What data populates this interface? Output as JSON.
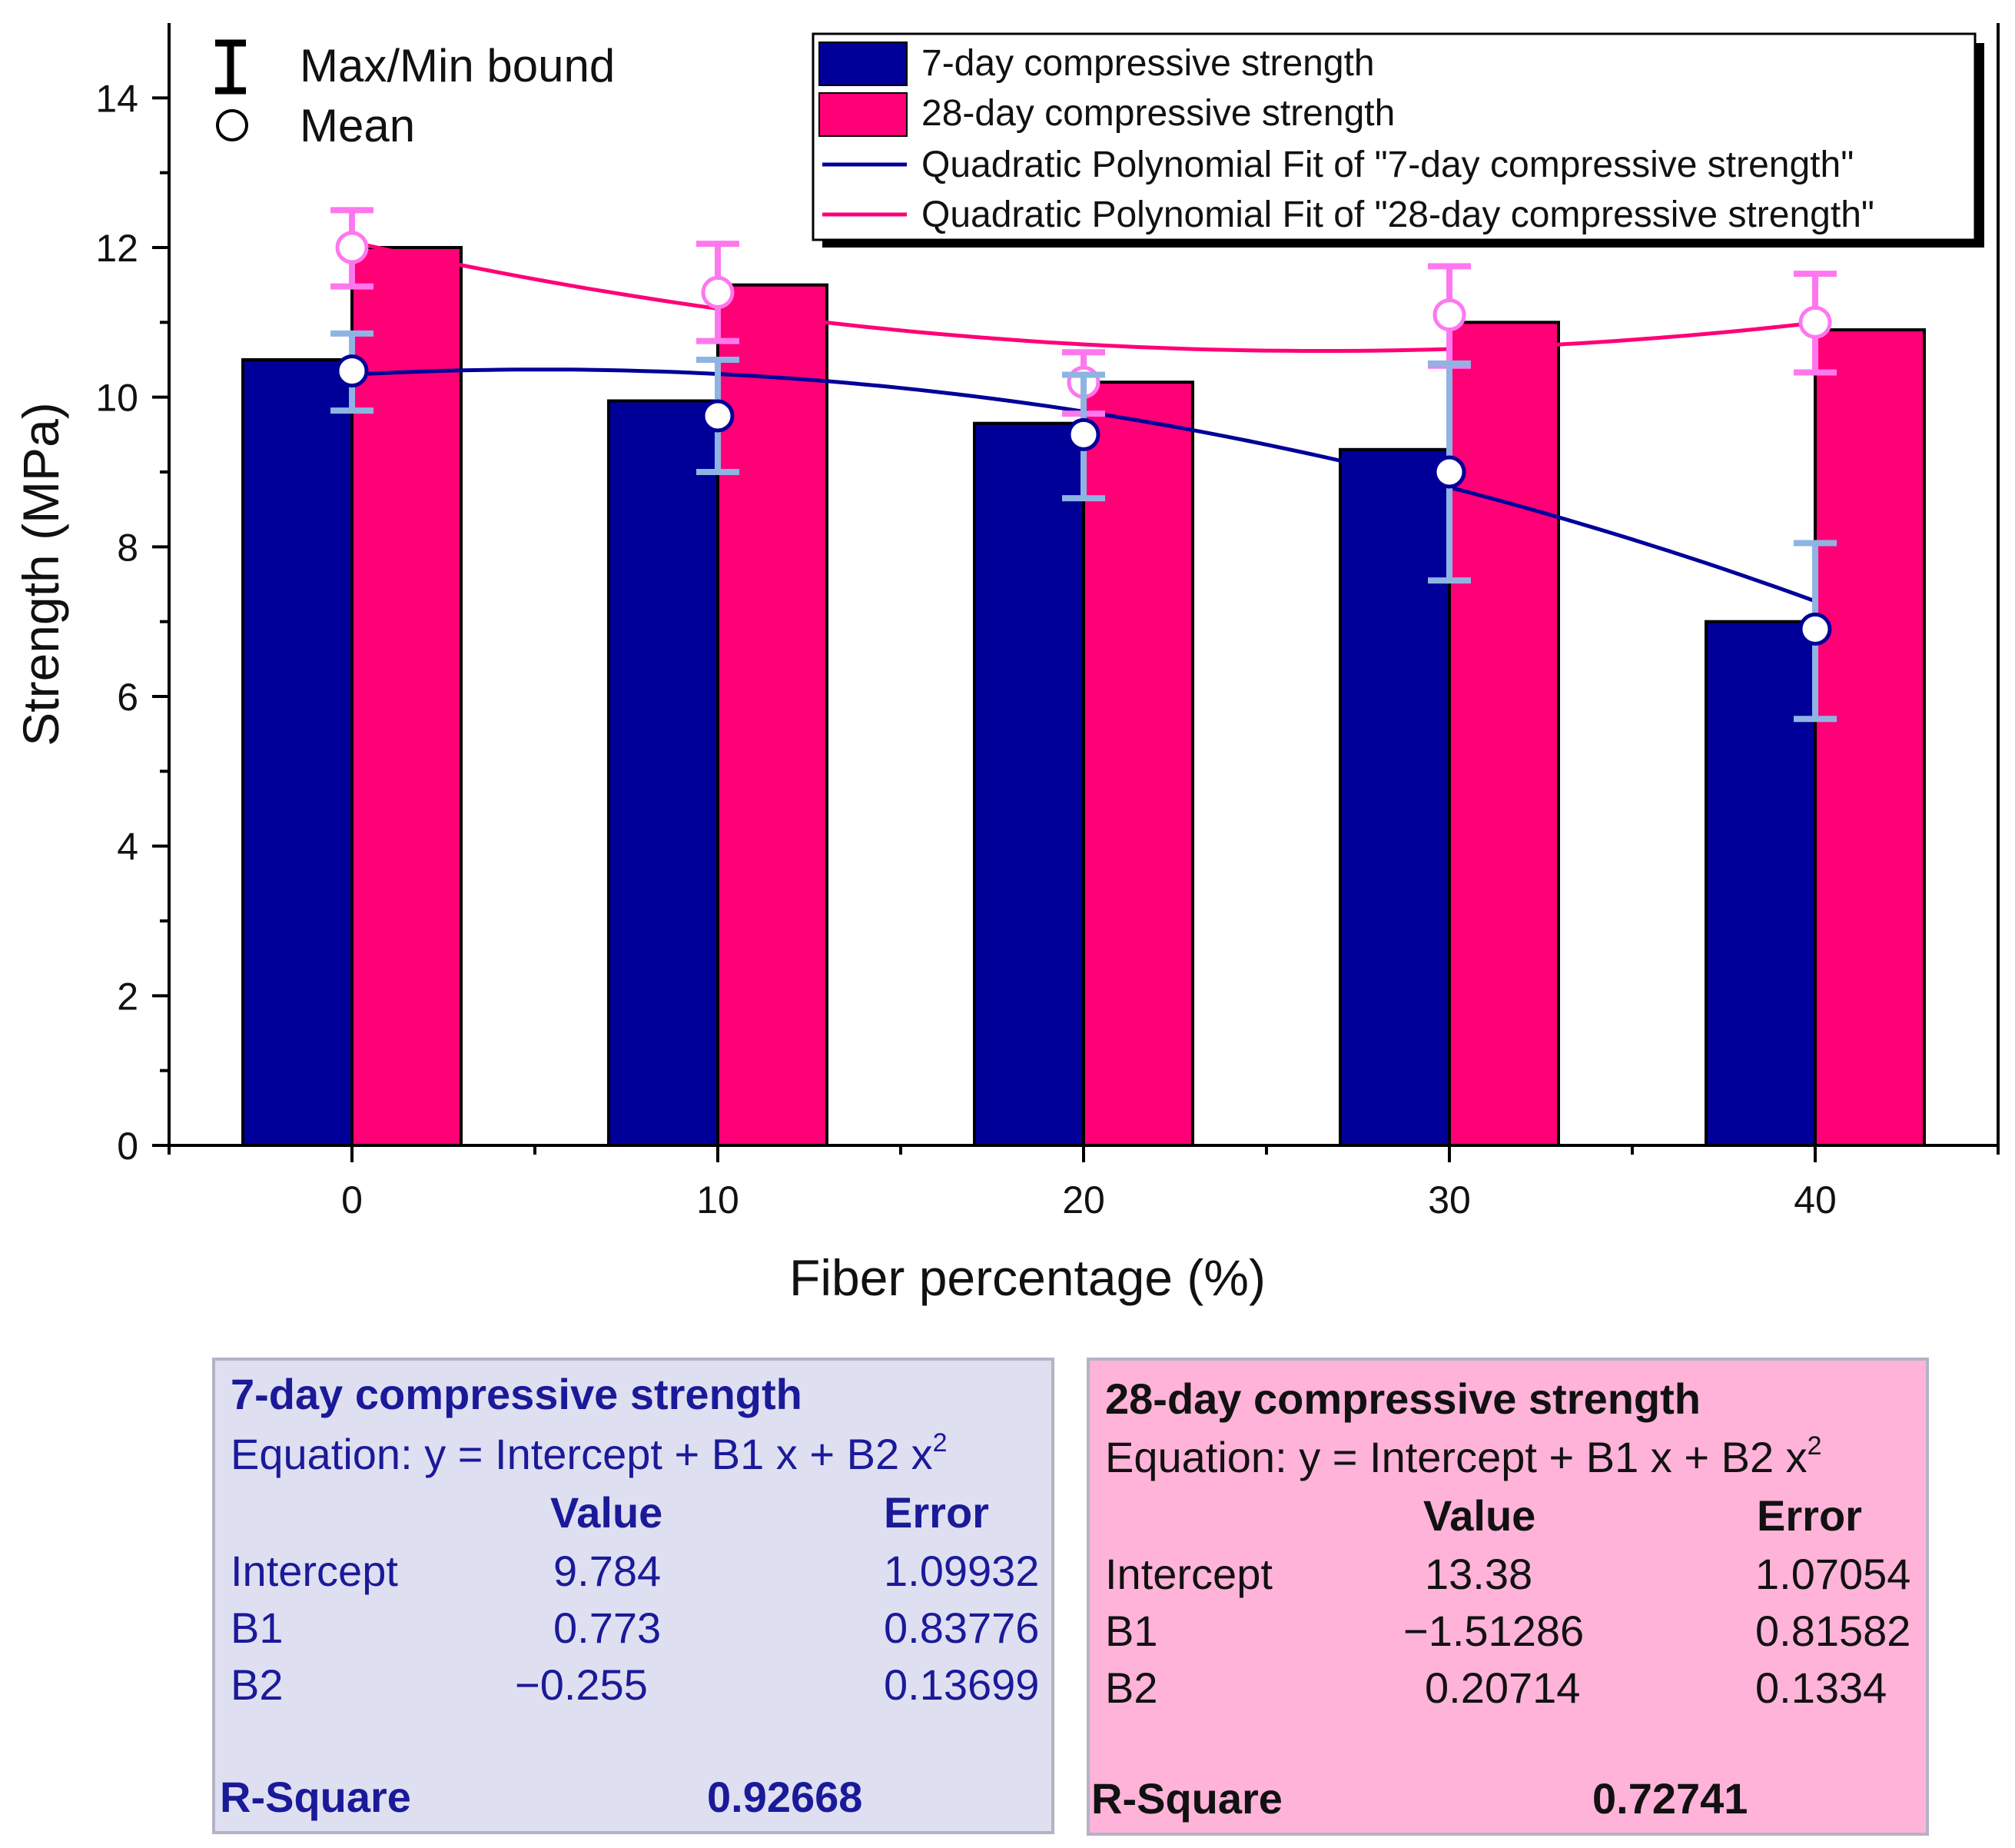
{
  "chart_data": {
    "type": "bar",
    "xlabel": "Fiber percentage (%)",
    "ylabel": "Strength (MPa)",
    "xlim": [
      -5,
      45
    ],
    "ylim": [
      0,
      15
    ],
    "x": [
      0,
      10,
      20,
      30,
      40
    ],
    "x_tick_labels": [
      "0",
      "10",
      "20",
      "30",
      "40"
    ],
    "y_ticks": [
      0,
      2,
      4,
      6,
      8,
      10,
      12,
      14
    ],
    "y_tick_labels": [
      "0",
      "2",
      "4",
      "6",
      "8",
      "10",
      "12",
      "14"
    ],
    "series": [
      {
        "name": "7-day compressive strength",
        "color": "#000099",
        "error_color": "#8fb4e3",
        "values": [
          10.5,
          9.95,
          9.65,
          9.3,
          7.0
        ],
        "mean": [
          10.35,
          9.75,
          9.5,
          9.0,
          6.9
        ],
        "max": [
          10.85,
          10.5,
          10.3,
          10.45,
          8.05
        ],
        "min": [
          9.82,
          9.0,
          8.65,
          7.55,
          5.7
        ],
        "fit": {
          "intercept": 9.784,
          "b1": 0.773,
          "b2": -0.255
        }
      },
      {
        "name": "28-day compressive strength",
        "color": "#ff0077",
        "error_color": "#ff77ee",
        "values": [
          12.0,
          11.5,
          10.2,
          11.0,
          10.9
        ],
        "mean": [
          12.0,
          11.4,
          10.2,
          11.1,
          11.0
        ],
        "max": [
          12.5,
          12.05,
          10.6,
          11.75,
          11.65
        ],
        "min": [
          11.48,
          10.75,
          9.78,
          10.42,
          10.33
        ],
        "fit": {
          "intercept": 13.38,
          "b1": -1.51286,
          "b2": 0.20714
        }
      }
    ],
    "legend": {
      "placement": "top-right",
      "entries": [
        "7-day compressive strength",
        "28-day compressive strength",
        "Quadratic Polynomial Fit of \"7-day compressive strength\"",
        "Quadratic Polynomial Fit of \"28-day compressive strength\""
      ],
      "fit_7_color": "#000099",
      "fit_28_color": "#ff0077"
    },
    "key": {
      "placement": "top-left",
      "bound_label": "Max/Min bound",
      "mean_label": "Mean"
    }
  },
  "panels": {
    "seven": {
      "title": "7-day compressive strength",
      "equation_prefix": "Equation: y = Intercept + B1 x + B2 x",
      "equation_sup": "2",
      "col_value": "Value",
      "col_error": "Error",
      "rows": [
        {
          "name": "Intercept",
          "value": "9.784",
          "error": "1.09932"
        },
        {
          "name": "B1",
          "value": "0.773",
          "error": "0.83776"
        },
        {
          "name": "B2",
          "value": "−0.255",
          "error": "0.13699"
        }
      ],
      "r_label": "R-Square",
      "r_value": "0.92668",
      "bg": "#dfdff2",
      "text_color": "#1a1a99"
    },
    "twentyeight": {
      "title": "28-day compressive strength",
      "equation_prefix": "Equation: y = Intercept + B1 x + B2 x",
      "equation_sup": "2",
      "col_value": "Value",
      "col_error": "Error",
      "rows": [
        {
          "name": "Intercept",
          "value": "13.38",
          "error": "1.07054"
        },
        {
          "name": "B1",
          "value": "−1.51286",
          "error": "0.81582"
        },
        {
          "name": "B2",
          "value": "0.20714",
          "error": "0.1334"
        }
      ],
      "r_label": "R-Square",
      "r_value": "0.72741",
      "bg": "#ffb3d9",
      "text_color": "#111111"
    }
  }
}
